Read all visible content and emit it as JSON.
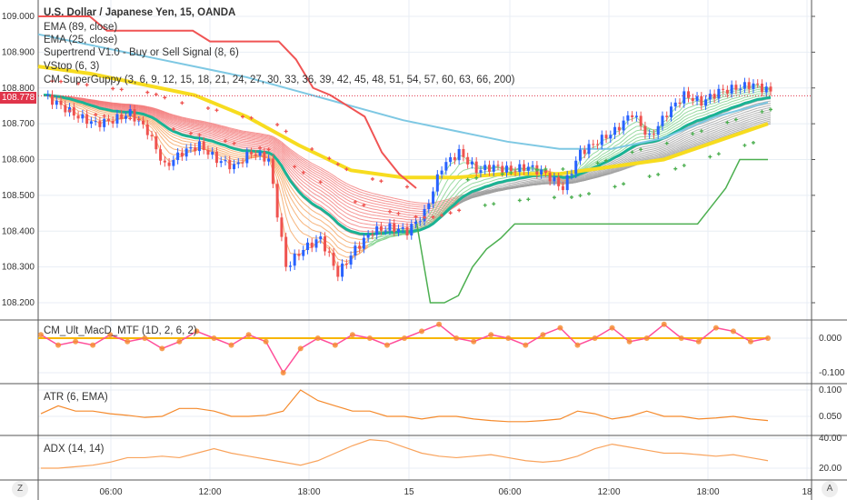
{
  "legend": {
    "title": "U.S. Dollar / Japanese Yen, 15, OANDA",
    "ema89": "EMA (89, close)",
    "ema25": "EMA (25, close)",
    "supertrend": "Supertrend V1.0 - Buy or Sell Signal (8, 6)",
    "vstop": "VStop (6, 3)",
    "guppy": "CM SuperGuppy (3, 6, 9, 12, 15, 18, 21, 24, 27, 30, 33, 36, 39, 42, 45, 48, 51, 54, 57, 60, 63, 66, 200)",
    "macd": "CM_Ult_MacD_MTF (1D, 2, 6, 2)",
    "atr": "ATR (6, EMA)",
    "adx": "ADX (14, 14)"
  },
  "last_price": "108.778",
  "buttons": {
    "left": "Z",
    "right": "A"
  },
  "colors": {
    "up": "#2962ff",
    "down": "#ef5350",
    "supertrend_down": "#f05454",
    "supertrend_up": "#4caf50",
    "ema89": "#7ec8e3",
    "ema200": "#f7dc1f",
    "vstop_up": "#4caf50",
    "vstop_down": "#ef5350",
    "osc": "#f58a2c"
  },
  "chart_data": [
    {
      "type": "candlestick",
      "ylim": [
        108.17,
        109.05
      ],
      "yticks": [
        "109.000",
        "108.900",
        "108.800",
        "108.700",
        "108.600",
        "108.500",
        "108.400",
        "108.300",
        "108.200"
      ],
      "xticks": [
        "06:00",
        "12:00",
        "18:00",
        "15",
        "06:00",
        "12:00",
        "18:00",
        "18"
      ],
      "close_hourly": [
        108.78,
        108.75,
        108.72,
        108.7,
        108.71,
        108.73,
        108.68,
        108.58,
        108.62,
        108.64,
        108.6,
        108.58,
        108.62,
        108.6,
        108.3,
        108.35,
        108.38,
        108.28,
        108.35,
        108.4,
        108.41,
        108.4,
        108.45,
        108.58,
        108.62,
        108.57,
        108.58,
        108.57,
        108.58,
        108.56,
        108.52,
        108.62,
        108.65,
        108.68,
        108.73,
        108.66,
        108.73,
        108.78,
        108.76,
        108.79,
        108.8,
        108.81,
        108.79
      ],
      "supertrend_down": [
        109.0,
        109.0,
        109.0,
        109.0,
        108.96,
        108.96,
        108.96,
        108.96,
        108.96,
        108.96,
        108.93,
        108.93,
        108.93,
        108.93,
        108.93,
        108.88,
        108.8,
        108.78,
        108.75,
        108.72,
        108.62,
        108.56,
        108.52
      ],
      "supertrend_up": [
        108.43,
        108.2,
        108.2,
        108.22,
        108.3,
        108.35,
        108.38,
        108.42,
        108.42,
        108.42,
        108.42,
        108.42,
        108.42,
        108.42,
        108.42,
        108.42,
        108.42,
        108.42,
        108.42,
        108.42,
        108.42,
        108.47,
        108.52,
        108.6,
        108.6,
        108.6
      ],
      "ema89": [
        108.95,
        108.92,
        108.89,
        108.86,
        108.83,
        108.79,
        108.75,
        108.71,
        108.68,
        108.65,
        108.63,
        108.63,
        108.66,
        108.72,
        108.76
      ],
      "ema200": [
        108.86,
        108.84,
        108.81,
        108.78,
        108.72,
        108.64,
        108.57,
        108.55,
        108.55,
        108.56,
        108.56,
        108.58,
        108.6,
        108.65,
        108.7
      ]
    },
    {
      "type": "line",
      "name": "macd",
      "ylim": [
        -0.13,
        0.04
      ],
      "yticks": [
        "0.000",
        "-0.100"
      ],
      "values": [
        0.01,
        -0.02,
        -0.01,
        -0.02,
        0.01,
        -0.01,
        0.0,
        -0.03,
        -0.01,
        0.02,
        0.0,
        -0.02,
        0.01,
        -0.01,
        -0.1,
        -0.03,
        0.0,
        -0.02,
        0.01,
        0.0,
        -0.02,
        0.0,
        0.02,
        0.04,
        0.0,
        -0.01,
        0.01,
        0.0,
        -0.02,
        0.01,
        0.03,
        -0.02,
        0.0,
        0.03,
        -0.01,
        0.0,
        0.04,
        0.0,
        -0.01,
        0.03,
        0.02,
        -0.01,
        0.0
      ]
    },
    {
      "type": "line",
      "name": "atr",
      "ylim": [
        0.03,
        0.11
      ],
      "yticks": [
        "0.100",
        "0.050"
      ],
      "values": [
        0.055,
        0.07,
        0.06,
        0.06,
        0.055,
        0.052,
        0.048,
        0.05,
        0.065,
        0.065,
        0.06,
        0.05,
        0.05,
        0.052,
        0.06,
        0.1,
        0.08,
        0.07,
        0.06,
        0.06,
        0.05,
        0.05,
        0.045,
        0.05,
        0.05,
        0.045,
        0.042,
        0.04,
        0.04,
        0.042,
        0.045,
        0.06,
        0.055,
        0.045,
        0.05,
        0.06,
        0.05,
        0.05,
        0.045,
        0.047,
        0.05,
        0.045,
        0.042
      ]
    },
    {
      "type": "line",
      "name": "adx",
      "ylim": [
        15,
        43
      ],
      "yticks": [
        "40.00",
        "20.00"
      ],
      "values": [
        20,
        20,
        21,
        22,
        24,
        27,
        27,
        28,
        27,
        30,
        33,
        30,
        28,
        26,
        24,
        22,
        25,
        30,
        35,
        39,
        38,
        34,
        30,
        28,
        27,
        28,
        29,
        27,
        25,
        24,
        25,
        28,
        33,
        36,
        34,
        32,
        30,
        30,
        29,
        28,
        29,
        27,
        25
      ]
    }
  ]
}
